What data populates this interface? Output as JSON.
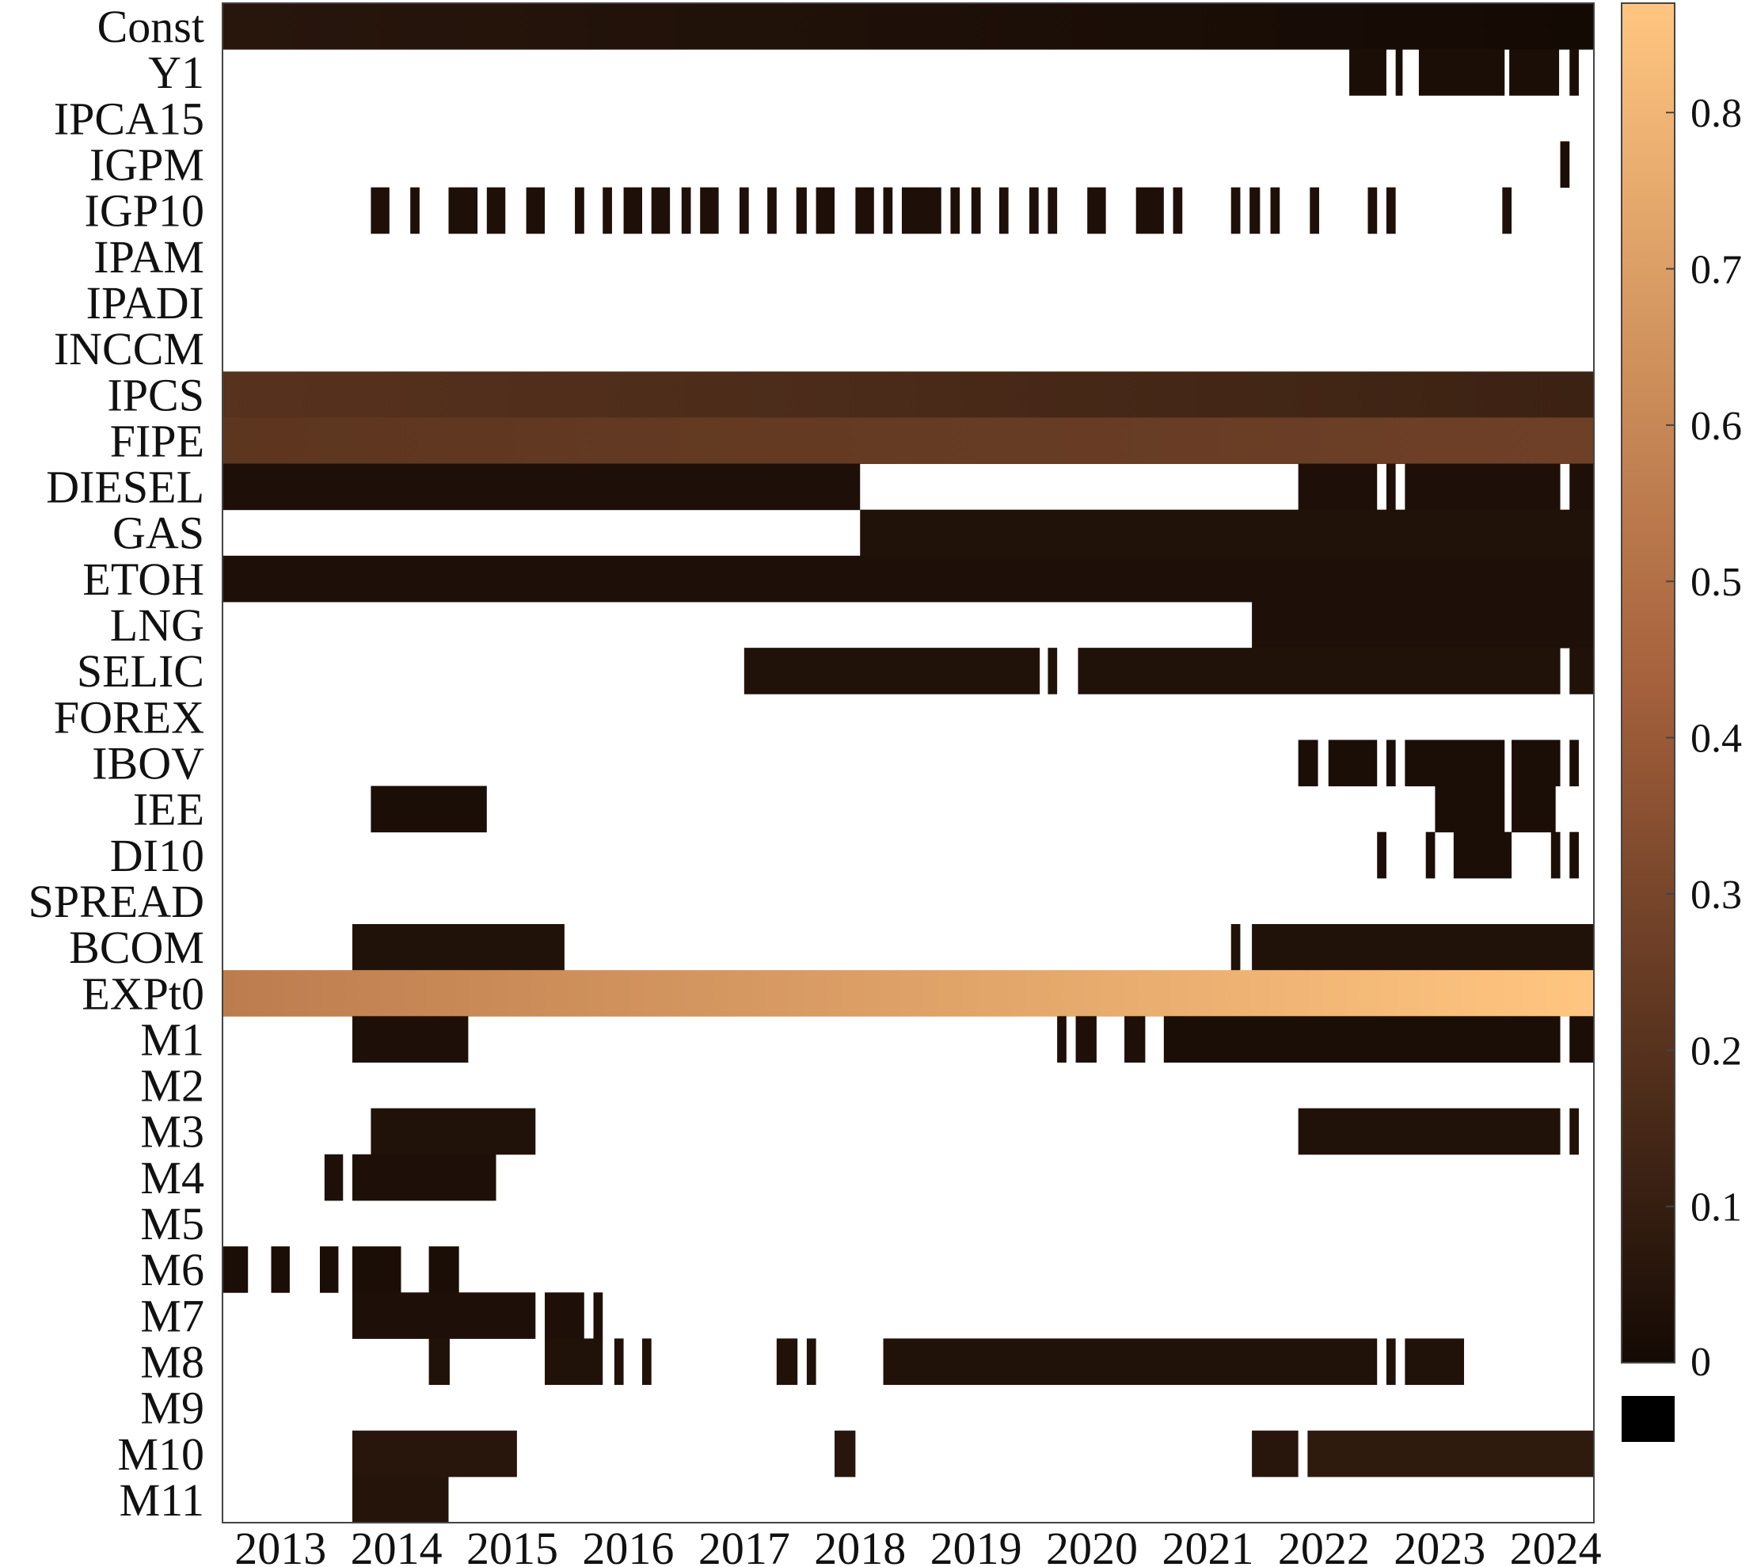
{
  "chart_data": {
    "type": "heatmap",
    "title": "",
    "xlabel": "",
    "ylabel": "",
    "x_ticks": [
      "2013",
      "2014",
      "2015",
      "2016",
      "2017",
      "2018",
      "2019",
      "2020",
      "2021",
      "2022",
      "2023",
      "2024"
    ],
    "x_range": [
      2013,
      2024.83
    ],
    "colorbar": {
      "ticks": [
        0,
        0.1,
        0.2,
        0.3,
        0.4,
        0.5,
        0.6,
        0.7,
        0.8
      ],
      "range": [
        0,
        0.87
      ],
      "zero_label": "0",
      "colors": {
        "low": "#140a04",
        "mid": "#a5613c",
        "high": "#ffc680"
      }
    },
    "grid": false,
    "legend": "colorbar-right",
    "rows": [
      {
        "name": "Const",
        "segments": [
          [
            2013.0,
            2024.83,
            0.06,
            0.0
          ]
        ]
      },
      {
        "name": "Y1",
        "segments": [
          [
            2022.72,
            2023.04,
            0.02
          ],
          [
            2023.12,
            2023.18,
            0.02
          ],
          [
            2023.32,
            2024.06,
            0.02
          ],
          [
            2024.1,
            2024.53,
            0.02
          ],
          [
            2024.62,
            2024.7,
            0.02
          ]
        ]
      },
      {
        "name": "IPCA15",
        "segments": []
      },
      {
        "name": "IGPM",
        "segments": [
          [
            2024.54,
            2024.62,
            0.02
          ]
        ]
      },
      {
        "name": "IGP10",
        "segments": [
          [
            2014.28,
            2014.44,
            0.03
          ],
          [
            2014.62,
            2014.7,
            0.03
          ],
          [
            2014.95,
            2015.2,
            0.03
          ],
          [
            2015.28,
            2015.44,
            0.03
          ],
          [
            2015.62,
            2015.78,
            0.03
          ],
          [
            2016.04,
            2016.12,
            0.03
          ],
          [
            2016.28,
            2016.36,
            0.03
          ],
          [
            2016.46,
            2016.62,
            0.03
          ],
          [
            2016.7,
            2016.86,
            0.03
          ],
          [
            2016.96,
            2017.04,
            0.03
          ],
          [
            2017.12,
            2017.28,
            0.03
          ],
          [
            2017.46,
            2017.54,
            0.03
          ],
          [
            2017.7,
            2017.78,
            0.03
          ],
          [
            2017.95,
            2018.04,
            0.03
          ],
          [
            2018.12,
            2018.28,
            0.03
          ],
          [
            2018.46,
            2018.62,
            0.03
          ],
          [
            2018.7,
            2018.78,
            0.03
          ],
          [
            2018.86,
            2019.2,
            0.03
          ],
          [
            2019.28,
            2019.36,
            0.03
          ],
          [
            2019.46,
            2019.54,
            0.03
          ],
          [
            2019.7,
            2019.78,
            0.03
          ],
          [
            2019.96,
            2020.04,
            0.03
          ],
          [
            2020.12,
            2020.2,
            0.03
          ],
          [
            2020.46,
            2020.62,
            0.03
          ],
          [
            2020.88,
            2021.12,
            0.03
          ],
          [
            2021.2,
            2021.28,
            0.03
          ],
          [
            2021.7,
            2021.78,
            0.03
          ],
          [
            2021.86,
            2021.95,
            0.03
          ],
          [
            2022.04,
            2022.12,
            0.03
          ],
          [
            2022.38,
            2022.46,
            0.03
          ],
          [
            2022.88,
            2022.96,
            0.03
          ],
          [
            2023.04,
            2023.12,
            0.03
          ],
          [
            2024.04,
            2024.12,
            0.03
          ]
        ]
      },
      {
        "name": "IPAM",
        "segments": []
      },
      {
        "name": "IPADI",
        "segments": []
      },
      {
        "name": "INCCM",
        "segments": []
      },
      {
        "name": "IPCS",
        "segments": [
          [
            2013.0,
            2024.83,
            0.2,
            0.12
          ]
        ]
      },
      {
        "name": "FIPE",
        "segments": [
          [
            2013.0,
            2024.83,
            0.22,
            0.27
          ]
        ]
      },
      {
        "name": "DIESEL",
        "segments": [
          [
            2013.0,
            2018.5,
            0.03
          ],
          [
            2022.28,
            2022.96,
            0.03
          ],
          [
            2023.04,
            2023.12,
            0.03
          ],
          [
            2023.2,
            2024.54,
            0.03
          ],
          [
            2024.62,
            2024.83,
            0.03
          ]
        ]
      },
      {
        "name": "GAS",
        "segments": [
          [
            2018.5,
            2024.83,
            0.04
          ]
        ]
      },
      {
        "name": "ETOH",
        "segments": [
          [
            2013.0,
            2024.83,
            0.03
          ]
        ]
      },
      {
        "name": "LNG",
        "segments": [
          [
            2021.88,
            2024.83,
            0.03
          ]
        ]
      },
      {
        "name": "SELIC",
        "segments": [
          [
            2017.5,
            2020.05,
            0.04
          ],
          [
            2020.12,
            2020.2,
            0.04
          ],
          [
            2020.38,
            2024.54,
            0.04
          ],
          [
            2024.62,
            2024.83,
            0.04
          ]
        ]
      },
      {
        "name": "FOREX",
        "segments": []
      },
      {
        "name": "IBOV",
        "segments": [
          [
            2022.28,
            2022.45,
            0.02
          ],
          [
            2022.54,
            2022.96,
            0.02
          ],
          [
            2023.04,
            2023.12,
            0.02
          ],
          [
            2023.2,
            2024.06,
            0.02
          ],
          [
            2024.12,
            2024.54,
            0.02
          ],
          [
            2024.62,
            2024.7,
            0.02
          ]
        ]
      },
      {
        "name": "IEE",
        "segments": [
          [
            2014.28,
            2015.28,
            0.02
          ],
          [
            2023.46,
            2024.06,
            0.02
          ],
          [
            2024.12,
            2024.5,
            0.02
          ]
        ]
      },
      {
        "name": "DI10",
        "segments": [
          [
            2022.96,
            2023.04,
            0.02
          ],
          [
            2023.38,
            2023.46,
            0.02
          ],
          [
            2023.62,
            2024.12,
            0.02
          ],
          [
            2024.46,
            2024.54,
            0.02
          ],
          [
            2024.62,
            2024.7,
            0.02
          ]
        ]
      },
      {
        "name": "SPREAD",
        "segments": []
      },
      {
        "name": "BCOM",
        "segments": [
          [
            2014.12,
            2015.95,
            0.04
          ],
          [
            2021.7,
            2021.78,
            0.04
          ],
          [
            2021.88,
            2024.83,
            0.04
          ]
        ]
      },
      {
        "name": "EXPt0",
        "segments": [
          [
            2013.0,
            2024.83,
            0.55,
            0.87
          ]
        ]
      },
      {
        "name": "M1",
        "segments": [
          [
            2014.12,
            2015.12,
            0.03
          ],
          [
            2020.2,
            2020.28,
            0.03
          ],
          [
            2020.36,
            2020.54,
            0.03
          ],
          [
            2020.78,
            2020.96,
            0.03
          ],
          [
            2021.12,
            2024.54,
            0.02
          ],
          [
            2024.62,
            2024.83,
            0.02
          ]
        ]
      },
      {
        "name": "M2",
        "segments": []
      },
      {
        "name": "M3",
        "segments": [
          [
            2014.28,
            2015.7,
            0.04
          ],
          [
            2022.28,
            2024.54,
            0.04
          ],
          [
            2024.62,
            2024.7,
            0.04
          ]
        ]
      },
      {
        "name": "M4",
        "segments": [
          [
            2013.88,
            2014.04,
            0.03
          ],
          [
            2014.12,
            2015.36,
            0.03
          ]
        ]
      },
      {
        "name": "M5",
        "segments": []
      },
      {
        "name": "M6",
        "segments": [
          [
            2013.0,
            2013.22,
            0.02
          ],
          [
            2013.42,
            2013.58,
            0.02
          ],
          [
            2013.84,
            2014.0,
            0.02
          ],
          [
            2014.12,
            2014.54,
            0.02
          ],
          [
            2014.78,
            2015.04,
            0.02
          ]
        ]
      },
      {
        "name": "M7",
        "segments": [
          [
            2014.12,
            2015.7,
            0.03
          ],
          [
            2015.78,
            2016.12,
            0.03
          ],
          [
            2016.2,
            2016.28,
            0.03
          ]
        ]
      },
      {
        "name": "M8",
        "segments": [
          [
            2014.78,
            2014.96,
            0.04
          ],
          [
            2015.78,
            2016.28,
            0.04
          ],
          [
            2016.38,
            2016.46,
            0.04
          ],
          [
            2016.62,
            2016.7,
            0.04
          ],
          [
            2017.78,
            2017.96,
            0.04
          ],
          [
            2018.04,
            2018.12,
            0.04
          ],
          [
            2018.7,
            2022.96,
            0.04
          ],
          [
            2023.04,
            2023.12,
            0.04
          ],
          [
            2023.2,
            2023.71,
            0.04
          ]
        ]
      },
      {
        "name": "M9",
        "segments": []
      },
      {
        "name": "M10",
        "segments": [
          [
            2014.12,
            2015.54,
            0.06
          ],
          [
            2018.28,
            2018.46,
            0.06
          ],
          [
            2021.88,
            2022.28,
            0.06
          ],
          [
            2022.36,
            2024.83,
            0.08
          ]
        ]
      },
      {
        "name": "M11",
        "segments": [
          [
            2014.12,
            2014.95,
            0.05
          ]
        ]
      }
    ]
  }
}
